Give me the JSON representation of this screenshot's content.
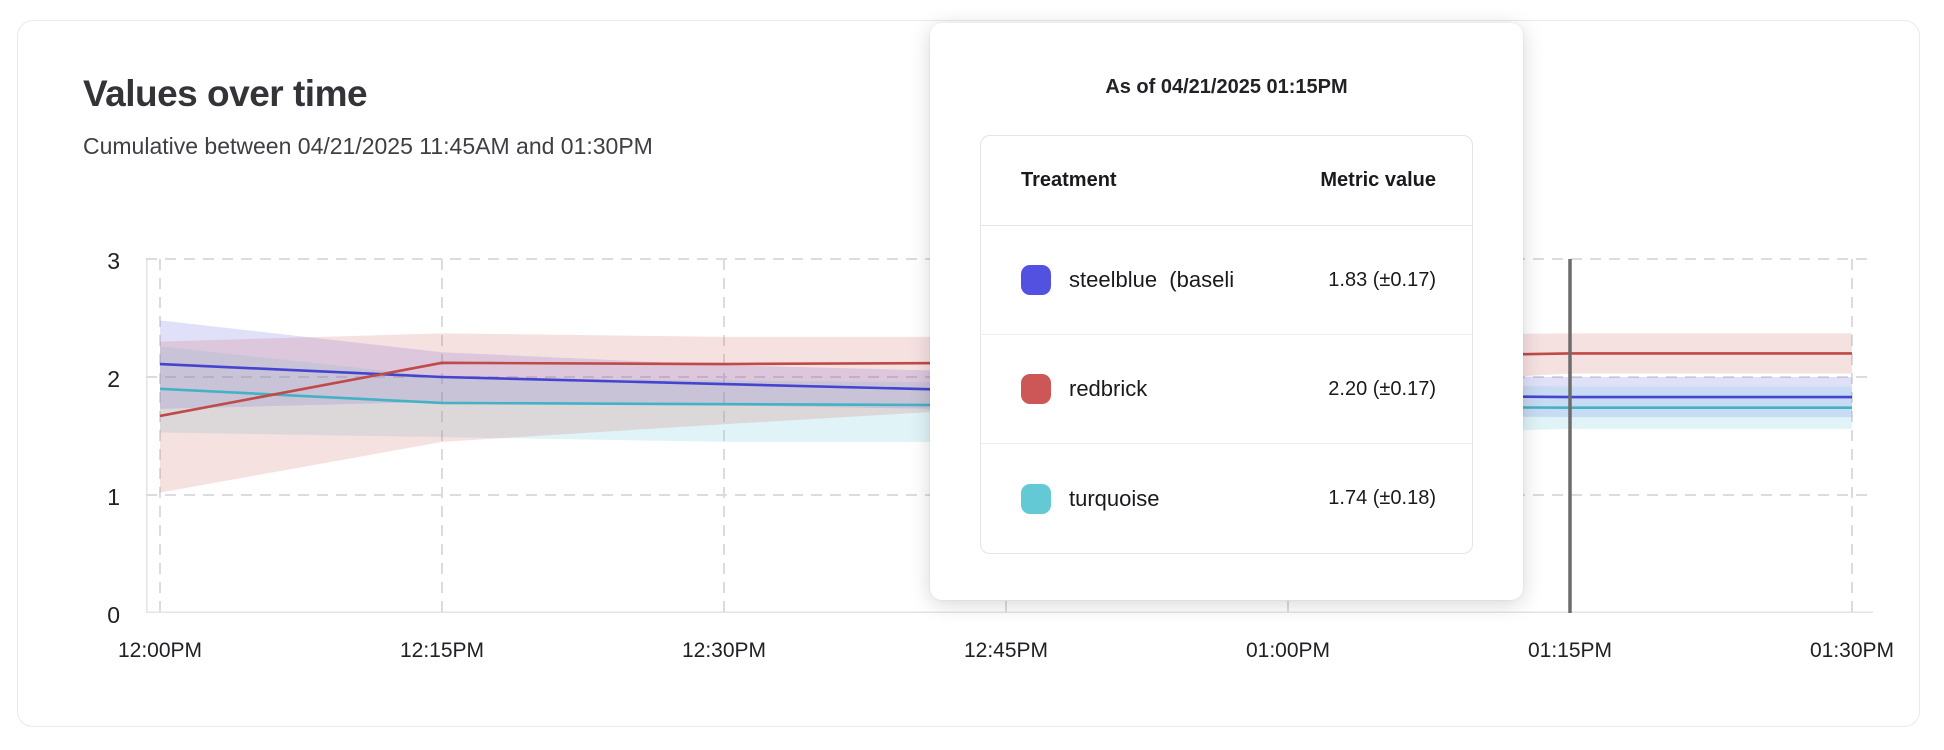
{
  "card": {
    "title": "Values over time",
    "subtitle": "Cumulative between 04/21/2025 11:45AM and 01:30PM"
  },
  "tooltip": {
    "title": "As of 04/21/2025 01:15PM",
    "columns": {
      "treatment": "Treatment",
      "metric": "Metric value"
    },
    "rows": [
      {
        "label": "steelblue  (baseli",
        "value": "1.83 (±0.17)",
        "swatch_color": "#5352e0"
      },
      {
        "label": "redbrick",
        "value": "2.20 (±0.17)",
        "swatch_color": "#cd5757"
      },
      {
        "label": "turquoise",
        "value": "1.74 (±0.18)",
        "swatch_color": "#62c9d5"
      }
    ]
  },
  "chart_data": {
    "type": "line",
    "title": "Values over time",
    "x": [
      "12:00PM",
      "12:15PM",
      "12:30PM",
      "12:45PM",
      "01:00PM",
      "01:15PM",
      "01:30PM"
    ],
    "yticks": [
      "0",
      "1",
      "2",
      "3"
    ],
    "ylim": [
      0,
      3
    ],
    "grid": true,
    "legend_position": "tooltip",
    "hover_x": "01:15PM",
    "hover_line_color": "#6e6c6b",
    "series": [
      {
        "name": "steelblue",
        "line_color": "#4544d0",
        "band_color": "#5352e0",
        "band_opacity": 0.18,
        "values": [
          2.11,
          2.0,
          1.94,
          1.88,
          1.85,
          1.83,
          1.83
        ],
        "upper": [
          2.48,
          2.21,
          2.1,
          2.04,
          2.01,
          2.0,
          2.0
        ],
        "lower": [
          1.73,
          1.79,
          1.76,
          1.72,
          1.68,
          1.66,
          1.66
        ]
      },
      {
        "name": "turquoise",
        "line_color": "#45b1c5",
        "band_color": "#62c9d5",
        "band_opacity": 0.2,
        "values": [
          1.9,
          1.78,
          1.77,
          1.76,
          1.75,
          1.74,
          1.74
        ],
        "upper": [
          2.26,
          2.0,
          1.97,
          1.95,
          1.93,
          1.92,
          1.92
        ],
        "lower": [
          1.53,
          1.49,
          1.45,
          1.45,
          1.5,
          1.56,
          1.56
        ]
      },
      {
        "name": "redbrick",
        "line_color": "#c04a48",
        "band_color": "#cd5757",
        "band_opacity": 0.18,
        "values": [
          1.67,
          2.12,
          2.11,
          2.12,
          2.16,
          2.2,
          2.2
        ],
        "upper": [
          2.3,
          2.37,
          2.34,
          2.34,
          2.35,
          2.37,
          2.37
        ],
        "lower": [
          1.02,
          1.45,
          1.6,
          1.74,
          1.9,
          2.03,
          2.03
        ]
      }
    ]
  }
}
